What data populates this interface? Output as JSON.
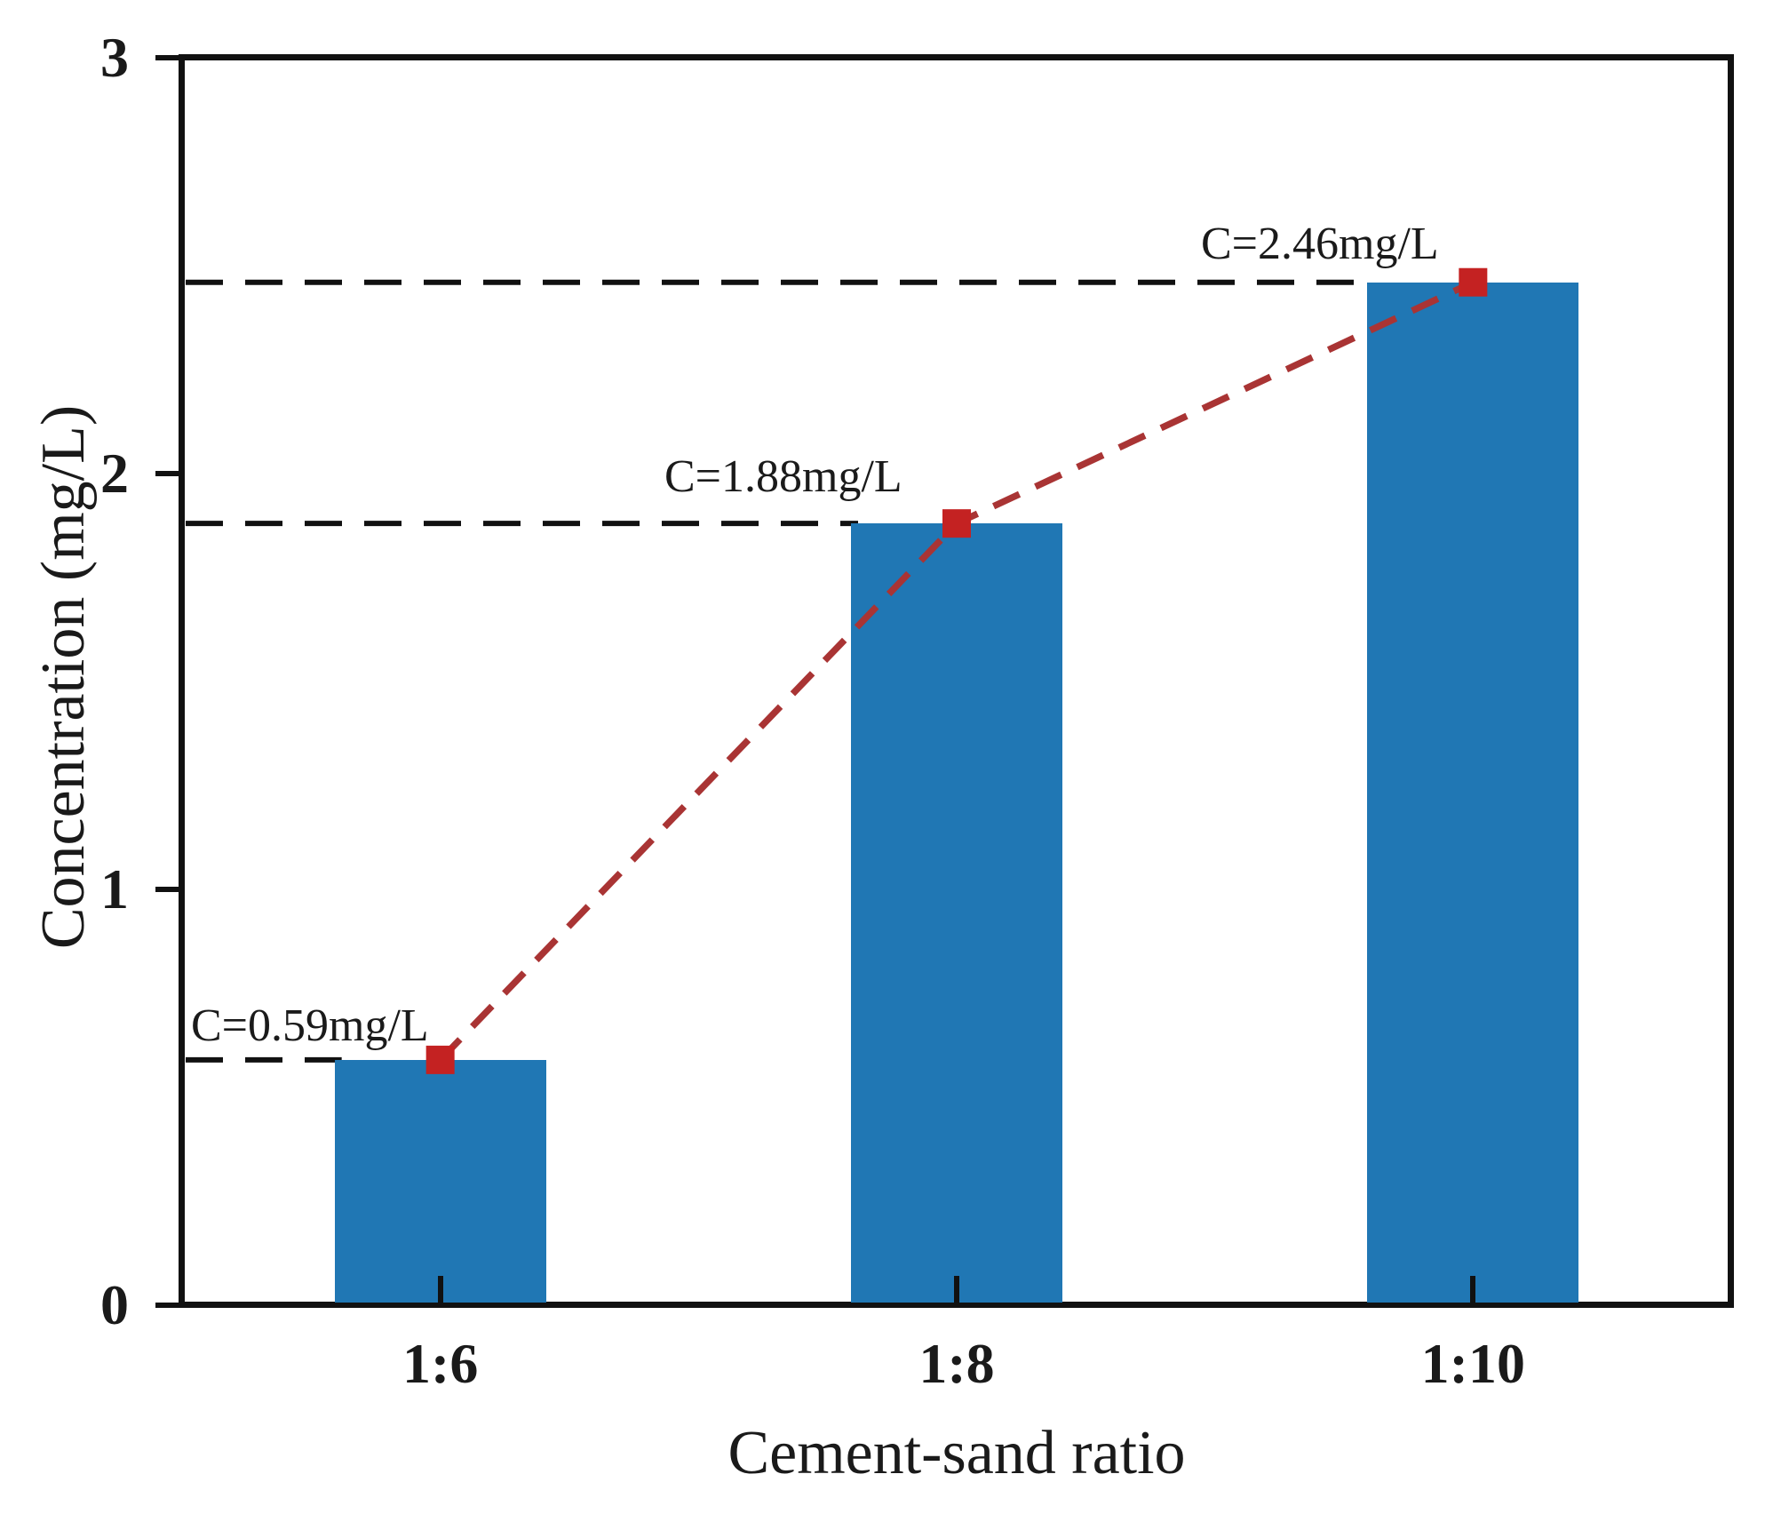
{
  "chart_data": {
    "type": "bar",
    "title": "",
    "categories": [
      "1:6",
      "1:8",
      "1:10"
    ],
    "values": [
      0.59,
      1.88,
      2.46
    ],
    "value_labels": [
      "C=0.59mg/L",
      "C=1.88mg/L",
      "C=2.46mg/L"
    ],
    "xlabel": "Cement-sand ratio",
    "ylabel": "Concentration (mg/L)",
    "ylim": [
      0,
      3
    ],
    "yticks": [
      0,
      1,
      2,
      3
    ],
    "ytick_labels": [
      "0",
      "1",
      "2",
      "3"
    ],
    "grid": false,
    "legend": "none",
    "overlay_line": {
      "type": "line",
      "style": "dashed",
      "marker": "square",
      "values": [
        0.59,
        1.88,
        2.46
      ]
    },
    "reference_lines": {
      "axis": "y",
      "style": "dashed",
      "values": [
        0.59,
        1.88,
        2.46
      ]
    },
    "colors": {
      "bar": "#2077b4",
      "overlay_line": "#a93434",
      "marker": "#c42222",
      "reference_line": "#111111",
      "axis": "#111111",
      "text": "#1a1a1a",
      "background": "#ffffff"
    }
  }
}
